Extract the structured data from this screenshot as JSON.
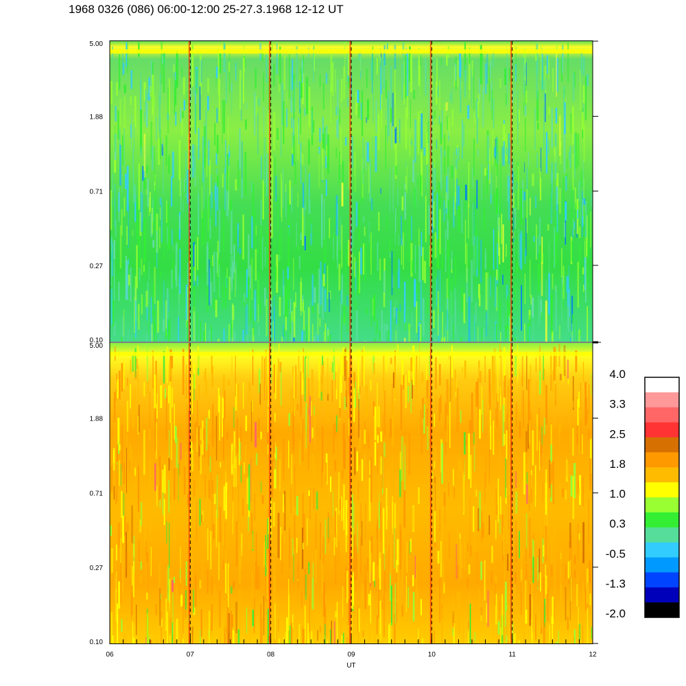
{
  "title": "1968 0326 (086) 06:00-12:00 25-27.3.1968  12-12 UT",
  "chart_data": [
    {
      "type": "heatmap",
      "panel": "upper",
      "x_range": [
        6,
        12
      ],
      "y_scale": "log",
      "y_range": [
        0.1,
        5.0
      ],
      "y_ticks": [
        "5.00",
        "1.88",
        "0.71",
        "0.27",
        "0.10"
      ],
      "dominant_level": 0.3,
      "level_range_shown": [
        -0.5,
        1.8
      ]
    },
    {
      "type": "heatmap",
      "panel": "lower",
      "x_range": [
        6,
        12
      ],
      "y_scale": "log",
      "y_range": [
        0.1,
        5.0
      ],
      "y_ticks": [
        "5.00",
        "1.88",
        "0.71",
        "0.27",
        "0.10"
      ],
      "dominant_level": 1.8,
      "level_range_shown": [
        0.3,
        2.5
      ]
    }
  ],
  "x_axis": {
    "label": "UT",
    "ticks": [
      "06",
      "07",
      "08",
      "09",
      "10",
      "11",
      "12"
    ],
    "hour_markers": [
      7,
      8,
      9,
      10,
      11
    ]
  },
  "colorbar": {
    "labels": [
      "4.0",
      "3.3",
      "2.5",
      "1.8",
      "1.0",
      "0.3",
      "-0.5",
      "-1.3",
      "-2.0"
    ],
    "colors": [
      "#ffffff",
      "#ff9999",
      "#ff6666",
      "#ff3333",
      "#d67000",
      "#ff9900",
      "#ffbb00",
      "#ffff00",
      "#99ff33",
      "#33ee33",
      "#55dd99",
      "#33ccff",
      "#0099ff",
      "#0044ff",
      "#0000bb",
      "#000000"
    ]
  }
}
